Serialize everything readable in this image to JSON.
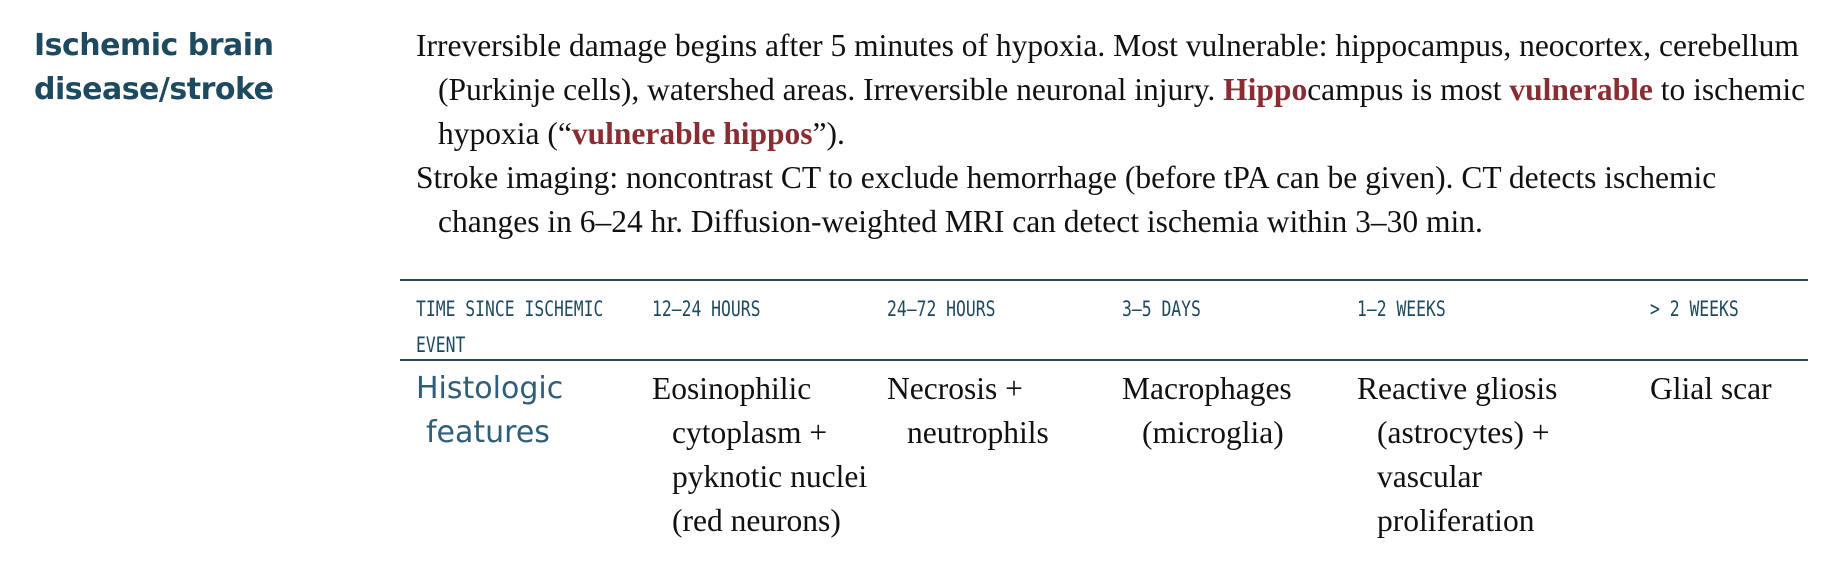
{
  "heading": {
    "line1": "Ischemic brain",
    "line2": "disease/stroke"
  },
  "para1": {
    "part1": "Irreversible damage begins after 5 minutes of hypoxia. Most vulnerable: hippocampus, neocortex, cerebellum (Purkinje cells), watershed areas. Irreversible neuronal injury. ",
    "hl1": "Hippo",
    "part2": "campus is most ",
    "hl2": "vulnerable",
    "part3": " to ischemic hypoxia (“",
    "hl3": "vulnerable hippos",
    "part4": "”)."
  },
  "para2": {
    "text": "Stroke imaging: noncontrast CT to exclude hemorrhage (before tPA can be given). CT detects ischemic changes in 6–24 hr. Diffusion-weighted MRI can detect ischemia within 3–30 min."
  },
  "table": {
    "headers": [
      {
        "line1": "TIME SINCE ISCHEMIC",
        "line2": "EVENT"
      },
      {
        "line1": "12–24 HOURS"
      },
      {
        "line1": "24–72 HOURS"
      },
      {
        "line1": "3–5 DAYS"
      },
      {
        "line1": "1–2 WEEKS"
      },
      {
        "line1": "> 2 WEEKS"
      }
    ],
    "row": {
      "label": "Histologic features",
      "cells": [
        "Eosinophilic cytoplasm + pyknotic nuclei (red neurons)",
        "Necrosis + neutrophils",
        "Macrophages (microglia)",
        "Reactive gliosis (astrocytes) + vascular proliferation",
        "Glial scar"
      ]
    }
  },
  "colors": {
    "heading": "#1e4a60",
    "highlight": "#8b2c33",
    "rule": "#1e4a60"
  }
}
